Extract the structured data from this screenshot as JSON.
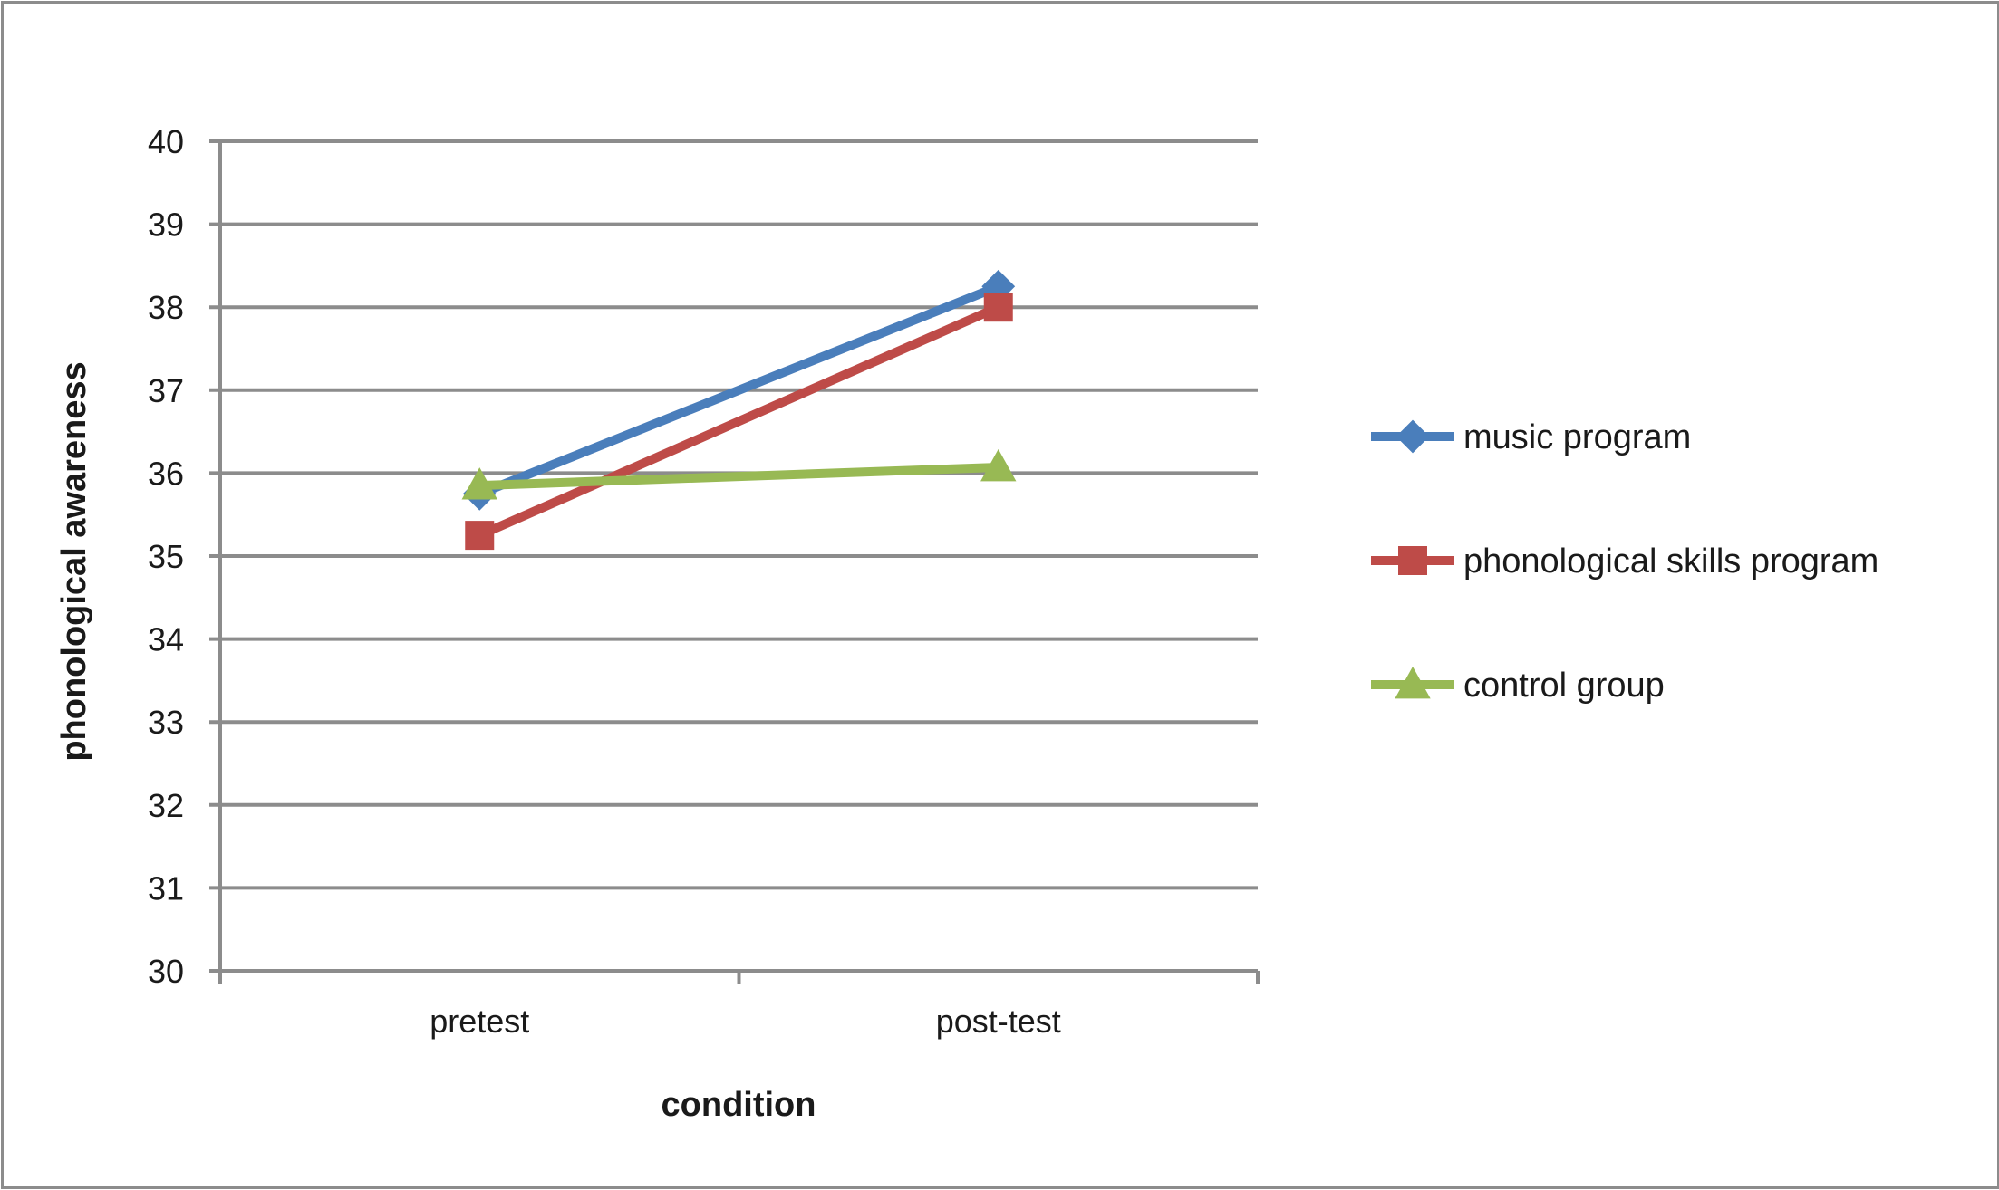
{
  "chart_data": {
    "type": "line",
    "title": "",
    "xlabel": "condition",
    "ylabel": "phonological awareness",
    "categories": [
      "pretest",
      "post-test"
    ],
    "ylim": [
      30,
      40
    ],
    "yticks": [
      "30",
      "31",
      "32",
      "33",
      "34",
      "35",
      "36",
      "37",
      "38",
      "39",
      "40"
    ],
    "grid": true,
    "legend_position": "right",
    "series": [
      {
        "name": "music program",
        "values": [
          35.75,
          38.25
        ],
        "color": "#4a7ebb",
        "marker": "diamond"
      },
      {
        "name": "phonological skills program",
        "values": [
          35.25,
          38.0
        ],
        "color": "#be4b48",
        "marker": "square"
      },
      {
        "name": "control group",
        "values": [
          35.85,
          36.07
        ],
        "color": "#98b954",
        "marker": "triangle"
      }
    ]
  }
}
